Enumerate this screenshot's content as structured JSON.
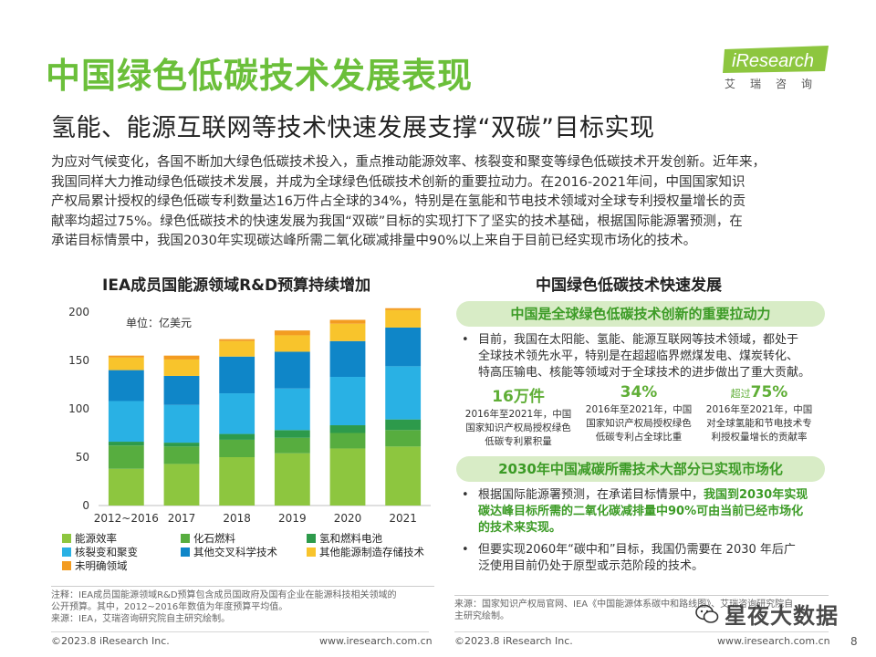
{
  "header": {
    "title": "中国绿色低碳技术发展表现",
    "subtitle": "氢能、能源互联网等技术快速发展支撑“双碳”目标实现",
    "logo_text": "iResearch",
    "logo_cn": "艾瑞咨询"
  },
  "intro": [
    "为应对气候变化，各国不断加大绿色低碳技术投入，重点推动能源效率、核裂变和聚变等绿色低碳技术开发创新。近年来，",
    "我国同样大力推动绿色低碳技术发展，并成为全球绿色低碳技术创新的重要拉动力。在2016-2021年间，中国国家知识",
    "产权局累计授权的绿色低碳专利数量达16万件占全球的34%，特别是在氢能和节电技术领域对全球专利授权量增长的贡",
    "献率均超过75%。绿色低碳技术的快速发展为我国“双碳”目标的实现打下了坚实的技术基础，根据国际能源署预测，在",
    "承诺目标情景中，我国2030年实现碳达峰所需二氧化碳减排量中90%以上来自于目前已经实现市场化的技术。"
  ],
  "left": {
    "title": "IEA成员国能源领域R&D预算持续增加",
    "unit": "单位：亿美元",
    "note": [
      "注释：IEA成员国能源领域R&D预算包含成员国政府及国有企业在能源科技相关领域的",
      "公开预算。其中，2012~2016年数值为年度预算平均值。",
      "来源：IEA，艾瑞咨询研究院自主研究绘制。"
    ]
  },
  "chart_data": {
    "type": "bar",
    "stacked": true,
    "categories": [
      "2012~2016",
      "2017",
      "2018",
      "2019",
      "2020",
      "2021"
    ],
    "ylim": [
      0,
      200
    ],
    "yticks": [
      0,
      50,
      100,
      150,
      200
    ],
    "unit": "单位：亿美元",
    "series": [
      {
        "name": "能源效率",
        "color": "#8dc63f",
        "values": [
          38,
          43,
          50,
          54,
          59,
          61
        ]
      },
      {
        "name": "化石燃料",
        "color": "#57ad3f",
        "values": [
          24,
          18,
          18,
          16,
          16,
          17
        ]
      },
      {
        "name": "氢和燃料电池",
        "color": "#2d9a4b",
        "values": [
          4,
          4,
          6,
          8,
          8,
          11
        ]
      },
      {
        "name": "核裂变和聚变",
        "color": "#29b1e4",
        "values": [
          42,
          39,
          42,
          43,
          50,
          55
        ]
      },
      {
        "name": "其他交叉科学技术",
        "color": "#0f86c8",
        "values": [
          32,
          30,
          38,
          38,
          37,
          40
        ]
      },
      {
        "name": "其他能源制造存储技术",
        "color": "#f8c42c",
        "values": [
          13,
          17,
          16,
          17,
          18,
          18
        ]
      },
      {
        "name": "未明确领域",
        "color": "#f39c21",
        "values": [
          2,
          4,
          2,
          5,
          4,
          2
        ]
      }
    ]
  },
  "legend": [
    {
      "label": "能源效率",
      "color": "#8dc63f"
    },
    {
      "label": "化石燃料",
      "color": "#57ad3f"
    },
    {
      "label": "氢和燃料电池",
      "color": "#2d9a4b"
    },
    {
      "label": "核裂变和聚变",
      "color": "#29b1e4"
    },
    {
      "label": "其他交叉科学技术",
      "color": "#0f86c8"
    },
    {
      "label": "其他能源制造存储技术",
      "color": "#f8c42c"
    },
    {
      "label": "未明确领域",
      "color": "#f39c21"
    }
  ],
  "right": {
    "title": "中国绿色低碳技术快速发展",
    "pill1": "中国是全球绿色低碳技术创新的重要拉动力",
    "bullet1": [
      "目前，我国在太阳能、氢能、能源互联网等技术领域，都处于",
      "全球技术领先水平，特别是在超超临界燃煤发电、煤炭转化、",
      "特高压输电、核能等领域对于全球技术的进步做出了重大贡献。"
    ],
    "stats": [
      {
        "prefix": "",
        "num": "16万件",
        "desc": [
          "2016年至2021年，中国",
          "国家知识产权局授权绿色",
          "低碳专利累积量"
        ]
      },
      {
        "prefix": "",
        "num": "34%",
        "desc": [
          "2016年至2021年，中国",
          "国家知识产权局授权绿色",
          "低碳专利占全球比重"
        ]
      },
      {
        "prefix": "超过",
        "num": "75%",
        "desc": [
          "2016年至2021年，中国",
          "对全球氢能和节电技术专",
          "利授权量增长的贡献率"
        ]
      }
    ],
    "pill2": "2030年中国减碳所需技术大部分已实现市场化",
    "bullet2": {
      "l1_plain": "根据国际能源署预测，在承诺目标情景中，",
      "l1_hl": "我国到2030年实现",
      "l2_hl": "碳达峰目标所需的二氧化碳减排量中90%可由当前已经市场化",
      "l3_hl": "的技术来实现。"
    },
    "bullet3": [
      "但要实现2060年“碳中和”目标，我国仍需要在 2030 年后广",
      "泛使用目前仍处于原型或示范阶段的技术。"
    ],
    "source": [
      "来源：国家知识产权局官网、IEA《中国能源体系碳中和路线图》、艾瑞咨询研究院自",
      "主研究绘制。"
    ]
  },
  "footer": {
    "copyright": "©2023.8 iResearch Inc.",
    "url": "www.iresearch.com.cn",
    "page": "8",
    "watermark": "星夜大数据"
  }
}
